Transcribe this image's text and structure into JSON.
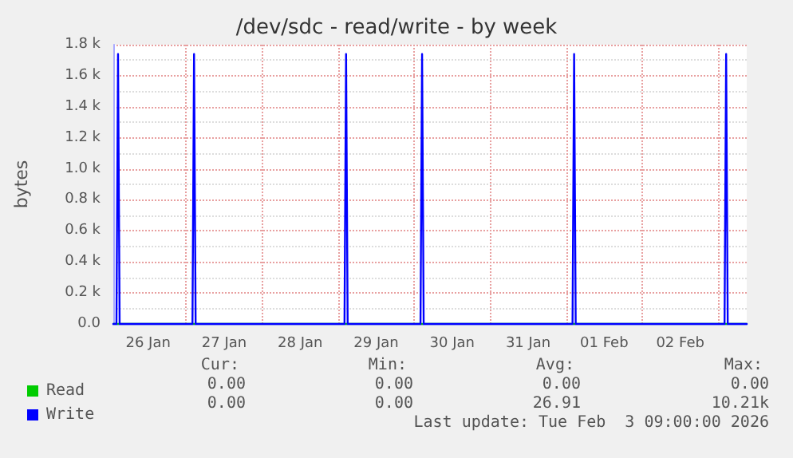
{
  "chart_data": {
    "type": "line",
    "title": "/dev/sdc - read/write - by week",
    "ylabel": "bytes",
    "x": [
      "2026-01-26T01:00",
      "2026-01-26T02:00",
      "2026-01-26T02:30",
      "2026-01-26T03:00",
      "2026-01-27T02:00",
      "2026-01-27T02:30",
      "2026-01-27T03:00",
      "2026-01-29T02:00",
      "2026-01-29T02:30",
      "2026-01-29T03:00",
      "2026-01-30T02:00",
      "2026-01-30T02:30",
      "2026-01-30T03:00",
      "2026-02-01T02:00",
      "2026-02-01T02:30",
      "2026-02-01T03:00",
      "2026-02-03T02:00",
      "2026-02-03T02:30",
      "2026-02-03T03:00",
      "2026-02-03T09:00"
    ],
    "series": [
      {
        "name": "Read",
        "color": "#00cc00",
        "values": [
          0,
          0,
          0,
          0,
          0,
          0,
          0,
          0,
          0,
          0,
          0,
          0,
          0,
          0,
          0,
          0,
          0,
          0,
          0,
          0
        ]
      },
      {
        "name": "Write",
        "color": "#0000ff",
        "values": [
          0,
          0,
          1740,
          0,
          0,
          1740,
          0,
          0,
          1740,
          0,
          0,
          1740,
          0,
          0,
          1740,
          0,
          0,
          1740,
          0,
          0
        ]
      }
    ],
    "xlim": [
      "2026-01-26T01:00",
      "2026-02-03T09:00"
    ],
    "xticks": [
      {
        "value": "2026-01-26T12:00",
        "label": "26 Jan"
      },
      {
        "value": "2026-01-27T12:00",
        "label": "27 Jan"
      },
      {
        "value": "2026-01-28T12:00",
        "label": "28 Jan"
      },
      {
        "value": "2026-01-29T12:00",
        "label": "29 Jan"
      },
      {
        "value": "2026-01-30T12:00",
        "label": "30 Jan"
      },
      {
        "value": "2026-01-31T12:00",
        "label": "31 Jan"
      },
      {
        "value": "2026-02-01T12:00",
        "label": "01 Feb"
      },
      {
        "value": "2026-02-02T12:00",
        "label": "02 Feb"
      }
    ],
    "ylim": [
      0,
      1800
    ],
    "yticks": [
      {
        "value": 0,
        "label": "0.0"
      },
      {
        "value": 200,
        "label": "0.2 k"
      },
      {
        "value": 400,
        "label": "0.4 k"
      },
      {
        "value": 600,
        "label": "0.6 k"
      },
      {
        "value": 800,
        "label": "0.8 k"
      },
      {
        "value": 1000,
        "label": "1.0 k"
      },
      {
        "value": 1200,
        "label": "1.2 k"
      },
      {
        "value": 1400,
        "label": "1.4 k"
      },
      {
        "value": 1600,
        "label": "1.6 k"
      },
      {
        "value": 1800,
        "label": "1.8 k"
      }
    ],
    "grid": true,
    "legend": "bottom left",
    "marker": "none",
    "line_style": "solid",
    "annotations": [
      "Cur:",
      "Min:",
      "Avg:",
      "Max:",
      "0.00",
      "0.00",
      "0.00",
      "0.00",
      "0.00",
      "0.00",
      "26.91",
      "10.21k",
      "Last update: Tue Feb  3 09:00:00 2026"
    ]
  }
}
